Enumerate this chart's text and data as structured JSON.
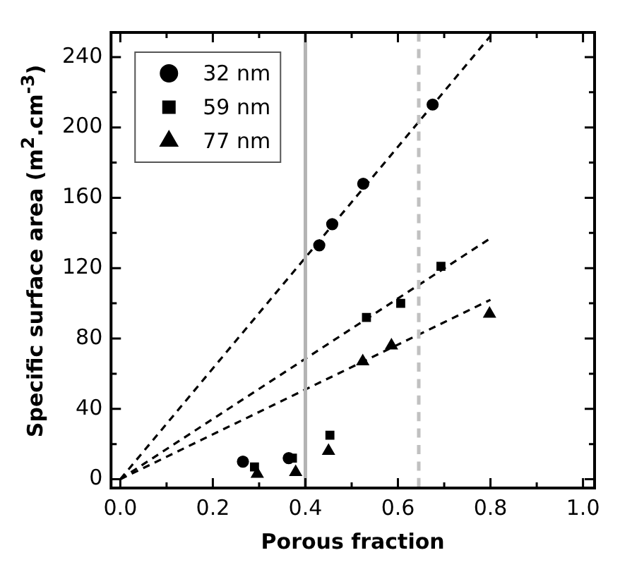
{
  "chart_data": {
    "type": "scatter",
    "xlabel": "Porous fraction",
    "ylabel": "Specific surface area (m$^{2}$.cm$^{-3}$)",
    "xlim": [
      -0.02,
      1.025
    ],
    "ylim": [
      -5,
      254
    ],
    "xticks": [
      {
        "value": 0,
        "label": "0.0"
      },
      {
        "value": 0.1,
        "label": null
      },
      {
        "value": 0.2,
        "label": "0.2"
      },
      {
        "value": 0.3,
        "label": null
      },
      {
        "value": 0.4,
        "label": "0.4"
      },
      {
        "value": 0.5,
        "label": null
      },
      {
        "value": 0.6,
        "label": "0.6"
      },
      {
        "value": 0.7,
        "label": null
      },
      {
        "value": 0.8,
        "label": "0.8"
      },
      {
        "value": 0.9,
        "label": null
      },
      {
        "value": 1,
        "label": "1.0"
      }
    ],
    "yticks": [
      0,
      {
        "value": 20,
        "label": null
      },
      40,
      {
        "value": 60,
        "label": null
      },
      80,
      {
        "value": 100,
        "label": null
      },
      120,
      {
        "value": 140,
        "label": null
      },
      160,
      {
        "value": 180,
        "label": null
      },
      200,
      {
        "value": 220,
        "label": null
      },
      240
    ],
    "grid": false,
    "legend": "top left",
    "series": [
      {
        "name": "32 nm",
        "color": "#000000",
        "marker": "circle",
        "x": [
          0.265,
          0.364,
          0.43,
          0.458,
          0.525,
          0.675
        ],
        "values": [
          10,
          12,
          133,
          145,
          168,
          213
        ]
      },
      {
        "name": "59 nm",
        "color": "#000000",
        "marker": "square",
        "x": [
          0.29,
          0.372,
          0.453,
          0.532,
          0.606,
          0.693
        ],
        "values": [
          7,
          12,
          25,
          92,
          100,
          121
        ]
      },
      {
        "name": "77 nm",
        "color": "#000000",
        "marker": "triangle",
        "x": [
          0.296,
          0.379,
          0.45,
          0.524,
          0.586,
          0.798
        ],
        "values": [
          3,
          4,
          16,
          67,
          76,
          94
        ]
      },
      {
        "type": "line",
        "color": "#000000",
        "marker": "none",
        "line_style": "dashed",
        "x": [
          0,
          0.8
        ],
        "values": [
          0,
          252
        ]
      },
      {
        "type": "line",
        "color": "#000000",
        "marker": "none",
        "line_style": "dashed",
        "x": [
          0,
          0.8
        ],
        "values": [
          0,
          137
        ]
      },
      {
        "type": "line",
        "color": "#000000",
        "marker": "none",
        "line_style": "dashed",
        "x": [
          0,
          0.8
        ],
        "values": [
          0,
          102
        ]
      }
    ],
    "ref_lines": [
      {
        "axis": "x",
        "value": 0.4,
        "color": "#b4b4b4",
        "line_style": "solid"
      },
      {
        "axis": "x",
        "value": 0.645,
        "color": "#c0c0c0",
        "line_style": "dashed"
      }
    ]
  }
}
